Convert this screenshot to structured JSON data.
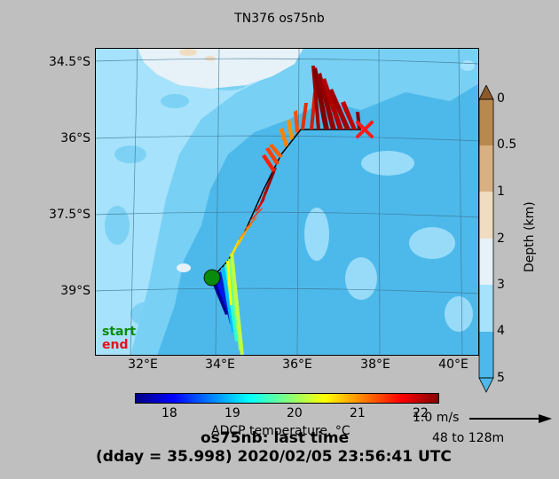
{
  "title": "TN376 os75nb",
  "map": {
    "lat_labels": [
      "34.5°S",
      "36°S",
      "37.5°S",
      "39°S"
    ],
    "lon_labels": [
      "32°E",
      "34°E",
      "36°E",
      "38°E",
      "40°E"
    ],
    "legend": {
      "start": "start",
      "end": "end"
    }
  },
  "depth_colorbar": {
    "label": "Depth (km)",
    "ticks": [
      "0",
      "0.5",
      "1",
      "2",
      "3",
      "4",
      "5"
    ],
    "colors": [
      "#8c5a2a",
      "#b8894e",
      "#d8b081",
      "#f0dcc0",
      "#e6f2f8",
      "#a6e2fb",
      "#78d0f4",
      "#4db9ea"
    ]
  },
  "temp_colorbar": {
    "label": "ADCP temperature, °C",
    "ticks": [
      "18",
      "19",
      "20",
      "21",
      "22"
    ]
  },
  "scale": {
    "speed": "1.0 m/s",
    "depth_range": "48 to 128m"
  },
  "footer": {
    "line1": "os75nb: last time",
    "line2": "(dday = 35.998) 2020/02/05 23:56:41 UTC"
  },
  "colors": {
    "start_marker": "#0a8a0a",
    "end_marker": "#ff1a1a",
    "track": "#000000"
  }
}
